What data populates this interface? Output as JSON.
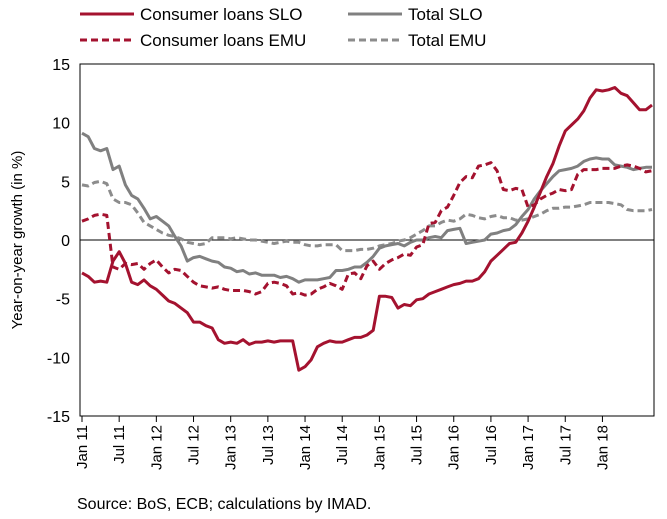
{
  "chart_data": {
    "type": "line",
    "ylabel": "Year-on-year growth (in %)",
    "ylim": [
      -15,
      15
    ],
    "yticks": [
      -15,
      -10,
      -5,
      0,
      5,
      10,
      15
    ],
    "x_start": "Jan 11",
    "x_end": "Sep 18",
    "xticks": [
      "Jan 11",
      "Jul 11",
      "Jan 12",
      "Jul 12",
      "Jan 13",
      "Jul 13",
      "Jan 14",
      "Jul 14",
      "Jan 15",
      "Jul 15",
      "Jan 16",
      "Jul 16",
      "Jan 17",
      "Jul 17",
      "Jan 18"
    ],
    "grid": false,
    "legend_position": "top",
    "source": "Source: BoS, ECB; calculations by IMAD.",
    "series": [
      {
        "name": "Consumer loans SLO",
        "color": "#a4122f",
        "dash": "solid",
        "values": [
          -2.8,
          -3.1,
          -3.6,
          -3.5,
          -3.6,
          -1.8,
          -1.0,
          -2.0,
          -3.6,
          -3.8,
          -3.4,
          -3.9,
          -4.2,
          -4.7,
          -5.2,
          -5.4,
          -5.8,
          -6.2,
          -7.0,
          -7.0,
          -7.3,
          -7.5,
          -8.5,
          -8.8,
          -8.7,
          -8.8,
          -8.5,
          -8.9,
          -8.7,
          -8.7,
          -8.6,
          -8.7,
          -8.6,
          -8.6,
          -8.6,
          -11.1,
          -10.8,
          -10.2,
          -9.1,
          -8.8,
          -8.6,
          -8.7,
          -8.7,
          -8.5,
          -8.3,
          -8.3,
          -8.1,
          -7.7,
          -4.8,
          -4.8,
          -4.9,
          -5.8,
          -5.5,
          -5.6,
          -5.1,
          -5.0,
          -4.6,
          -4.4,
          -4.2,
          -4.0,
          -3.8,
          -3.7,
          -3.5,
          -3.5,
          -3.3,
          -2.7,
          -1.8,
          -1.3,
          -0.8,
          -0.3,
          -0.2,
          0.6,
          1.6,
          2.8,
          4.1,
          5.4,
          6.5,
          8.0,
          9.3,
          9.8,
          10.3,
          11.0,
          12.1,
          12.8,
          12.7,
          12.8,
          13.0,
          12.5,
          12.3,
          11.7,
          11.1,
          11.1,
          11.5
        ]
      },
      {
        "name": "Total SLO",
        "color": "#808080",
        "dash": "solid",
        "values": [
          9.1,
          8.8,
          7.8,
          7.6,
          7.8,
          6.0,
          6.3,
          4.7,
          3.8,
          3.5,
          2.7,
          1.8,
          2.0,
          1.6,
          1.2,
          0.3,
          -0.5,
          -1.8,
          -1.5,
          -1.4,
          -1.6,
          -1.8,
          -1.9,
          -2.3,
          -2.4,
          -2.7,
          -2.6,
          -2.9,
          -2.8,
          -3.0,
          -3.0,
          -3.0,
          -3.2,
          -3.1,
          -3.3,
          -3.6,
          -3.4,
          -3.4,
          -3.4,
          -3.3,
          -3.2,
          -2.6,
          -2.6,
          -2.5,
          -2.3,
          -2.3,
          -1.9,
          -1.4,
          -0.7,
          -0.5,
          -0.4,
          -0.3,
          -0.5,
          -0.2,
          0.0,
          0.0,
          0.2,
          0.3,
          0.2,
          0.8,
          0.9,
          1.0,
          -0.3,
          -0.2,
          -0.1,
          0.0,
          0.5,
          0.6,
          0.8,
          0.9,
          1.3,
          2.0,
          2.6,
          3.5,
          4.2,
          4.8,
          5.4,
          5.9,
          6.0,
          6.1,
          6.3,
          6.7,
          6.9,
          7.0,
          6.9,
          6.9,
          6.4,
          6.3,
          6.2,
          6.0,
          6.1,
          6.2,
          6.2
        ]
      },
      {
        "name": "Consumer loans EMU",
        "color": "#a4122f",
        "dash": "dashed",
        "values": [
          1.6,
          1.8,
          2.1,
          2.2,
          2.1,
          -2.3,
          -2.5,
          -2.0,
          -2.1,
          -2.0,
          -2.5,
          -2.0,
          -1.7,
          -2.3,
          -2.8,
          -2.5,
          -2.6,
          -3.1,
          -3.6,
          -3.9,
          -4.0,
          -4.1,
          -4.0,
          -4.2,
          -4.3,
          -4.3,
          -4.3,
          -4.4,
          -4.6,
          -4.4,
          -3.7,
          -3.6,
          -3.7,
          -3.9,
          -4.6,
          -4.5,
          -4.7,
          -4.6,
          -4.2,
          -4.0,
          -3.7,
          -3.9,
          -4.2,
          -2.9,
          -2.8,
          -3.3,
          -2.2,
          -1.8,
          -2.5,
          -2.0,
          -1.7,
          -1.5,
          -1.2,
          -1.3,
          -0.6,
          -0.4,
          1.4,
          1.5,
          2.5,
          2.8,
          3.8,
          4.9,
          5.4,
          5.3,
          6.3,
          6.4,
          6.6,
          5.9,
          4.3,
          4.2,
          4.4,
          4.3,
          2.8,
          3.0,
          3.5,
          3.8,
          4.0,
          4.3,
          4.2,
          4.3,
          5.6,
          6.0,
          6.0,
          6.0,
          6.1,
          6.1,
          6.1,
          6.3,
          6.4,
          6.3,
          6.1,
          5.8,
          5.9
        ]
      },
      {
        "name": "Total EMU",
        "color": "#8c8c8c",
        "dash": "dashed",
        "values": [
          4.7,
          4.6,
          4.9,
          5.0,
          4.8,
          3.5,
          3.2,
          3.2,
          3.0,
          2.3,
          1.5,
          1.2,
          0.9,
          0.6,
          0.4,
          0.3,
          0.1,
          -0.2,
          -0.3,
          -0.4,
          -0.3,
          0.2,
          0.2,
          0.2,
          0.1,
          0.2,
          0.1,
          0.0,
          0.0,
          -0.1,
          -0.2,
          -0.3,
          -0.2,
          -0.1,
          -0.2,
          -0.2,
          -0.4,
          -0.5,
          -0.5,
          -0.4,
          -0.4,
          -0.4,
          -0.9,
          -0.9,
          -0.9,
          -0.8,
          -0.8,
          -0.7,
          -0.5,
          -0.4,
          -0.3,
          -0.1,
          0.0,
          0.2,
          0.5,
          0.8,
          1.2,
          1.2,
          1.5,
          1.7,
          1.6,
          1.8,
          2.2,
          2.1,
          1.9,
          1.8,
          2.0,
          2.1,
          1.9,
          1.9,
          1.7,
          1.7,
          1.8,
          2.0,
          2.2,
          2.5,
          2.7,
          2.7,
          2.8,
          2.8,
          2.9,
          3.0,
          3.2,
          3.2,
          3.2,
          3.2,
          3.1,
          3.0,
          2.6,
          2.5,
          2.5,
          2.5,
          2.6
        ]
      }
    ]
  }
}
